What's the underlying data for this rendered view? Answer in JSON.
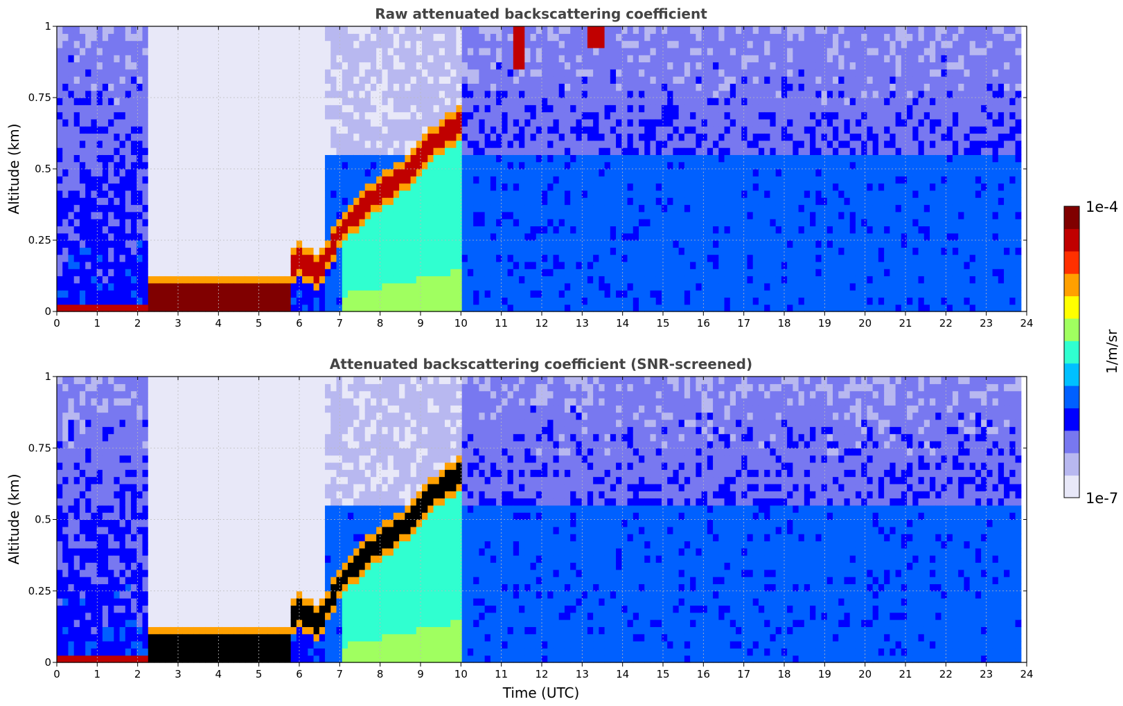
{
  "chart_data": [
    {
      "type": "heatmap",
      "title": "Raw attenuated backscattering coefficient",
      "xlabel": "",
      "ylabel": "Altitude (km)",
      "xlim": [
        0,
        24
      ],
      "ylim": [
        0,
        1
      ],
      "x_ticks": [
        "0",
        "1",
        "2",
        "3",
        "4",
        "5",
        "6",
        "7",
        "8",
        "9",
        "10",
        "11",
        "12",
        "13",
        "14",
        "15",
        "16",
        "17",
        "18",
        "19",
        "20",
        "21",
        "22",
        "23",
        "24"
      ],
      "y_ticks": [
        "0",
        "0.25",
        "0.5",
        "0.75",
        "1"
      ],
      "grid": true,
      "color_scale": "log",
      "data_end_x": 23.8,
      "layers": [
        {
          "kind": "surface_layer",
          "x": [
            0,
            2.2
          ],
          "top": 0.03,
          "level": 0.9
        },
        {
          "kind": "surface_layer",
          "x": [
            2.2,
            5.75
          ],
          "top": 0.09,
          "level": 0.98
        },
        {
          "kind": "residual_haze",
          "x": [
            2.2,
            5.75
          ],
          "top": 0.35,
          "level": 0.04
        },
        {
          "kind": "mixing_layer_top",
          "x": [
            5.75,
            6.0,
            6.5,
            7.0,
            7.5,
            8.0,
            8.5,
            9.0,
            9.5,
            10.0
          ],
          "top": [
            0.14,
            0.18,
            0.14,
            0.28,
            0.36,
            0.42,
            0.47,
            0.54,
            0.62,
            0.66
          ],
          "level": 0.9
        },
        {
          "kind": "boundary_layer",
          "x": [
            6.6,
            23.8
          ],
          "top": 0.55,
          "level": 0.45
        },
        {
          "kind": "aerosol_rise",
          "x": [
            7.0,
            10.0
          ],
          "top": [
            0.25,
            0.62
          ],
          "level": 0.55
        },
        {
          "kind": "cloud",
          "x": [
            11.3,
            11.6
          ],
          "bottom": 0.85,
          "level": 0.9
        },
        {
          "kind": "cloud",
          "x": [
            13.1,
            13.5
          ],
          "bottom": 0.92,
          "level": 0.9
        }
      ]
    },
    {
      "type": "heatmap",
      "title": "Attenuated backscattering coefficient (SNR-screened)",
      "xlabel": "Time (UTC)",
      "ylabel": "Altitude (km)",
      "xlim": [
        0,
        24
      ],
      "ylim": [
        0,
        1
      ],
      "x_ticks": [
        "0",
        "1",
        "2",
        "3",
        "4",
        "5",
        "6",
        "7",
        "8",
        "9",
        "10",
        "11",
        "12",
        "13",
        "14",
        "15",
        "16",
        "17",
        "18",
        "19",
        "20",
        "21",
        "22",
        "23",
        "24"
      ],
      "y_ticks": [
        "0",
        "0.25",
        "0.5",
        "0.75",
        "1"
      ],
      "grid": true,
      "color_scale": "log",
      "data_end_x": 23.8,
      "saturated_color": "#000000",
      "layers": [
        {
          "kind": "surface_layer",
          "x": [
            0,
            2.2
          ],
          "top": 0.03,
          "level": 0.9
        },
        {
          "kind": "surface_layer",
          "x": [
            2.2,
            5.75
          ],
          "top": 0.09,
          "level": 1.0
        },
        {
          "kind": "mixing_layer_top",
          "x": [
            5.75,
            6.0,
            6.5,
            7.0,
            7.5,
            8.0,
            8.5,
            9.0,
            9.5,
            10.0
          ],
          "top": [
            0.14,
            0.18,
            0.14,
            0.28,
            0.36,
            0.42,
            0.47,
            0.54,
            0.62,
            0.66
          ],
          "level": 1.0
        },
        {
          "kind": "boundary_layer",
          "x": [
            6.6,
            23.8
          ],
          "top": 0.55,
          "level": 0.4
        },
        {
          "kind": "aerosol_rise",
          "x": [
            7.0,
            10.0
          ],
          "top": [
            0.25,
            0.62
          ],
          "level": 0.55
        }
      ]
    }
  ],
  "colorbar": {
    "label": "1/m/sr",
    "max_label": "1e-4",
    "min_label": "1e-7",
    "scale": "log",
    "colormap": "jet",
    "colors": [
      "#e8e8f8",
      "#b8b8f0",
      "#7878f0",
      "#0000ff",
      "#0060ff",
      "#00c0ff",
      "#30ffd0",
      "#a0ff60",
      "#ffff00",
      "#ffa000",
      "#ff3000",
      "#c00000",
      "#800000"
    ]
  }
}
